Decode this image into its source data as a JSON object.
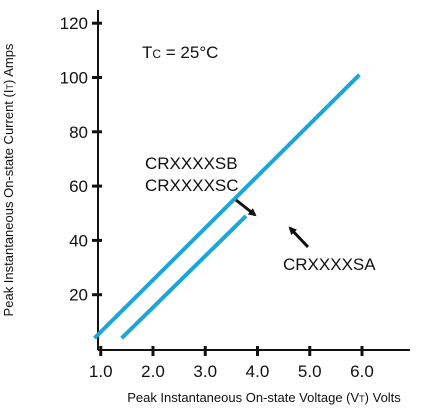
{
  "chart_data": {
    "type": "line",
    "xlabel": "Peak Instantaneous On-state Voltage (V",
    "xlabel_sub": "T",
    "xlabel_end": ") Volts",
    "ylabel": "Peak Instantaneous On-state Current (I",
    "ylabel_sub": "T",
    "ylabel_end": ") Amps",
    "xlim": [
      0.0,
      6.0
    ],
    "ylim": [
      0,
      120
    ],
    "x_ticks": [
      1.0,
      2.0,
      3.0,
      4.0,
      5.0,
      6.0
    ],
    "x_tick_labels": [
      "1.0",
      "2.0",
      "3.0",
      "4.0",
      "5.0",
      "6.0"
    ],
    "y_ticks": [
      20,
      40,
      60,
      80,
      100,
      120
    ],
    "y_tick_labels": [
      "20",
      "40",
      "60",
      "80",
      "100",
      "120"
    ],
    "grid": false,
    "line_color": "#1ba6d9",
    "series": [
      {
        "name": "CRXXXXSB / CRXXXXSC",
        "x": [
          0.88,
          5.95
        ],
        "y": [
          4,
          101
        ]
      },
      {
        "name": "CRXXXXSA",
        "x": [
          1.4,
          3.78
        ],
        "y": [
          4,
          49
        ]
      }
    ],
    "annotations": {
      "condition_prefix": "T",
      "condition_sub": "C",
      "condition_rest": " = 25°C",
      "label_sb": "CRXXXXSB",
      "label_sc": "CRXXXXSC",
      "label_sa": "CRXXXXSA"
    }
  }
}
